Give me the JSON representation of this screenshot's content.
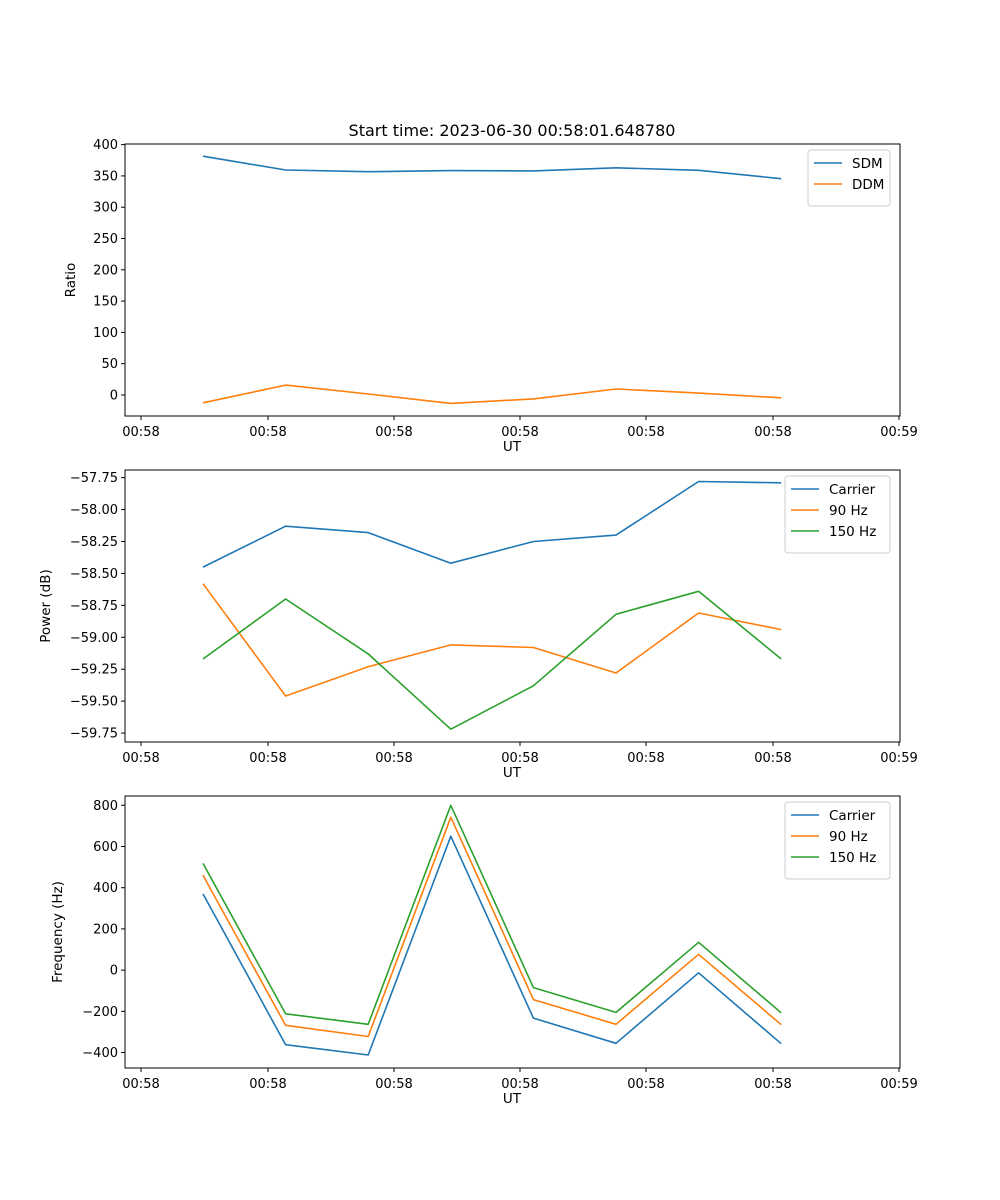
{
  "colors": {
    "c0": "#1f77b4",
    "c1": "#ff7f0e",
    "c2": "#2ca02c"
  },
  "chart_data": [
    {
      "type": "line",
      "title": "Start time: 2023-06-30 00:58:01.648780",
      "xlabel": "UT",
      "ylabel": "Ratio",
      "x_ticks": [
        "00:58",
        "00:58",
        "00:58",
        "00:58",
        "00:58",
        "00:58",
        "00:58",
        "00:59"
      ],
      "x": [
        1,
        2,
        3,
        4,
        5,
        6,
        7,
        8
      ],
      "y_ticks": [
        0,
        50,
        100,
        150,
        200,
        250,
        300,
        350,
        400
      ],
      "ylim": [
        -33.6,
        401
      ],
      "legend": "top-right",
      "series": [
        {
          "name": "SDM",
          "color": "#1f77b4",
          "values": [
            381.5,
            359.5,
            356.8,
            358.5,
            358.0,
            363.0,
            359.0,
            345.5
          ]
        },
        {
          "name": "DDM",
          "color": "#ff7f0e",
          "values": [
            -12.5,
            15.8,
            1.5,
            -13.5,
            -6.2,
            9.5,
            3.0,
            -4.5
          ]
        }
      ]
    },
    {
      "type": "line",
      "title": "",
      "xlabel": "UT",
      "ylabel": "Power (dB)",
      "x_ticks": [
        "00:58",
        "00:58",
        "00:58",
        "00:58",
        "00:58",
        "00:58",
        "00:58",
        "00:59"
      ],
      "x": [
        1,
        2,
        3,
        4,
        5,
        6,
        7,
        8
      ],
      "y_ticks": [
        -59.75,
        -59.5,
        -59.25,
        -59.0,
        -58.75,
        -58.5,
        -58.25,
        -58.0,
        -57.75
      ],
      "y_tick_labels": [
        "−59.75",
        "−59.50",
        "−59.25",
        "−59.00",
        "−58.75",
        "−58.50",
        "−58.25",
        "−58.00",
        "−57.75"
      ],
      "ylim": [
        -59.82,
        -57.69
      ],
      "legend": "top-right",
      "series": [
        {
          "name": "Carrier",
          "color": "#1f77b4",
          "values": [
            -58.45,
            -58.13,
            -58.18,
            -58.42,
            -58.25,
            -58.2,
            -57.78,
            -57.79
          ]
        },
        {
          "name": "90 Hz",
          "color": "#ff7f0e",
          "values": [
            -58.58,
            -59.46,
            -59.23,
            -59.06,
            -59.08,
            -59.28,
            -58.81,
            -58.94
          ]
        },
        {
          "name": "150 Hz",
          "color": "#2ca02c",
          "values": [
            -59.17,
            -58.7,
            -59.13,
            -59.72,
            -59.38,
            -58.82,
            -58.64,
            -59.17
          ]
        }
      ]
    },
    {
      "type": "line",
      "title": "",
      "xlabel": "UT",
      "ylabel": "Frequency (Hz)",
      "x_ticks": [
        "00:58",
        "00:58",
        "00:58",
        "00:58",
        "00:58",
        "00:58",
        "00:58",
        "00:59"
      ],
      "x": [
        1,
        2,
        3,
        4,
        5,
        6,
        7,
        8
      ],
      "y_ticks": [
        -400,
        -200,
        0,
        200,
        400,
        600,
        800
      ],
      "y_tick_labels": [
        "−400",
        "−200",
        "0",
        "200",
        "400",
        "600",
        "800"
      ],
      "ylim": [
        -475,
        845
      ],
      "legend": "top-right",
      "series": [
        {
          "name": "Carrier",
          "color": "#1f77b4",
          "values": [
            370,
            -362,
            -412,
            650,
            -233,
            -355,
            -13,
            -357
          ]
        },
        {
          "name": "90 Hz",
          "color": "#ff7f0e",
          "values": [
            460,
            -268,
            -322,
            742,
            -143,
            -263,
            77,
            -265
          ]
        },
        {
          "name": "150 Hz",
          "color": "#2ca02c",
          "values": [
            518,
            -212,
            -263,
            800,
            -85,
            -205,
            135,
            -207
          ]
        }
      ]
    }
  ]
}
